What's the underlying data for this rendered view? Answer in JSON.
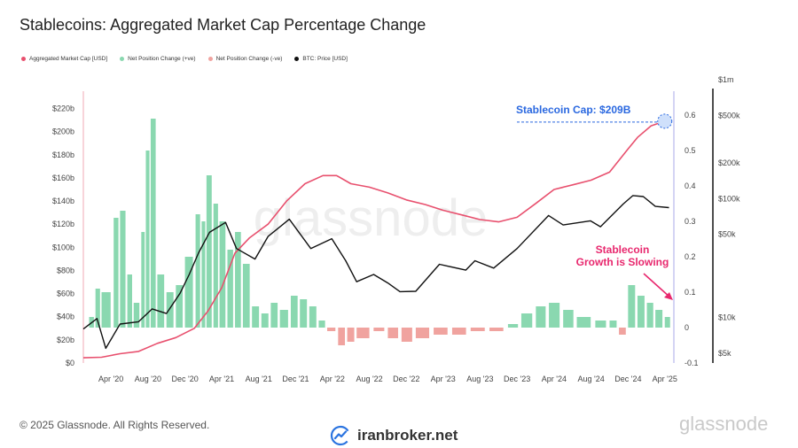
{
  "header": {
    "title": "Stablecoins: Aggregated Market Cap Percentage Change"
  },
  "legend": [
    {
      "label": "Aggregated Market Cap [USD]",
      "color": "#e8506e"
    },
    {
      "label": "Net Position Change (+ve)",
      "color": "#8ad8b0"
    },
    {
      "label": "Net Position Change (-ve)",
      "color": "#f0a39f"
    },
    {
      "label": "BTC: Price [USD]",
      "color": "#111111"
    }
  ],
  "footer": {
    "copyright": "© 2025 Glassnode. All Rights Reserved.",
    "brand": "iranbroker.net",
    "logo": "glassnode"
  },
  "chart_data": {
    "type": "line",
    "title": "Stablecoins: Aggregated Market Cap Percentage Change",
    "x_range": [
      "2020-01-01",
      "2025-05-01"
    ],
    "x_ticks": [
      "Apr '20",
      "Aug '20",
      "Dec '20",
      "Apr '21",
      "Aug '21",
      "Dec '21",
      "Apr '22",
      "Aug '22",
      "Dec '22",
      "Apr '23",
      "Aug '23",
      "Dec '23",
      "Apr '24",
      "Aug '24",
      "Dec '24",
      "Apr '25"
    ],
    "x_tick_dates": [
      "2020-04-01",
      "2020-08-01",
      "2020-12-01",
      "2021-04-01",
      "2021-08-01",
      "2021-12-01",
      "2022-04-01",
      "2022-08-01",
      "2022-12-01",
      "2023-04-01",
      "2023-08-01",
      "2023-12-01",
      "2024-04-01",
      "2024-08-01",
      "2024-12-01",
      "2025-04-01"
    ],
    "left_axis": {
      "ticks": [
        "$0",
        "$20b",
        "$40b",
        "$60b",
        "$80b",
        "$100b",
        "$120b",
        "$140b",
        "$160b",
        "$180b",
        "$200b",
        "$220b"
      ],
      "tick_values": [
        0,
        20,
        40,
        60,
        80,
        100,
        120,
        140,
        160,
        180,
        200,
        220
      ],
      "ylim": [
        0,
        225
      ],
      "unit": "billion USD"
    },
    "mid_axis": {
      "ticks": [
        "-0.1",
        "0",
        "0.1",
        "0.2",
        "0.3",
        "0.4",
        "0.5",
        "0.6"
      ],
      "tick_values": [
        -0.1,
        0,
        0.1,
        0.2,
        0.3,
        0.4,
        0.5,
        0.6
      ],
      "ylim": [
        -0.1,
        0.7
      ]
    },
    "right_axis": {
      "scale": "log",
      "ticks": [
        "$5k",
        "$10k",
        "$50k",
        "$100k",
        "$200k",
        "$500k",
        "$1m"
      ],
      "tick_values": [
        5000,
        10000,
        50000,
        100000,
        200000,
        500000,
        1000000
      ],
      "ylim": [
        5000,
        1000000
      ]
    },
    "series": [
      {
        "name": "Aggregated Market Cap [USD]",
        "axis": "left",
        "color": "#e8506e",
        "points": [
          [
            "2020-01-01",
            4.5
          ],
          [
            "2020-03-01",
            5
          ],
          [
            "2020-05-01",
            8
          ],
          [
            "2020-07-01",
            10
          ],
          [
            "2020-09-01",
            17
          ],
          [
            "2020-11-01",
            22
          ],
          [
            "2021-01-01",
            30
          ],
          [
            "2021-02-15",
            45
          ],
          [
            "2021-04-01",
            65
          ],
          [
            "2021-05-15",
            95
          ],
          [
            "2021-07-01",
            108
          ],
          [
            "2021-09-01",
            120
          ],
          [
            "2021-11-01",
            140
          ],
          [
            "2022-01-01",
            155
          ],
          [
            "2022-03-01",
            162
          ],
          [
            "2022-04-15",
            162
          ],
          [
            "2022-06-01",
            155
          ],
          [
            "2022-08-01",
            152
          ],
          [
            "2022-10-01",
            147
          ],
          [
            "2022-12-01",
            141
          ],
          [
            "2023-02-01",
            137
          ],
          [
            "2023-04-01",
            132
          ],
          [
            "2023-06-01",
            128
          ],
          [
            "2023-08-01",
            124
          ],
          [
            "2023-10-01",
            122
          ],
          [
            "2023-12-01",
            126
          ],
          [
            "2024-02-01",
            138
          ],
          [
            "2024-04-01",
            150
          ],
          [
            "2024-06-01",
            154
          ],
          [
            "2024-08-01",
            158
          ],
          [
            "2024-10-01",
            165
          ],
          [
            "2024-12-01",
            185
          ],
          [
            "2025-01-01",
            195
          ],
          [
            "2025-02-15",
            205
          ],
          [
            "2025-04-01",
            209
          ]
        ]
      },
      {
        "name": "BTC: Price [USD]",
        "axis": "right",
        "color": "#111111",
        "points": [
          [
            "2020-01-01",
            8000
          ],
          [
            "2020-02-15",
            9800
          ],
          [
            "2020-03-15",
            5500
          ],
          [
            "2020-05-01",
            8800
          ],
          [
            "2020-07-01",
            9200
          ],
          [
            "2020-08-15",
            11800
          ],
          [
            "2020-10-01",
            10800
          ],
          [
            "2020-11-15",
            16000
          ],
          [
            "2020-12-15",
            23000
          ],
          [
            "2021-01-15",
            35000
          ],
          [
            "2021-02-20",
            52000
          ],
          [
            "2021-04-14",
            63000
          ],
          [
            "2021-05-20",
            38000
          ],
          [
            "2021-07-20",
            31000
          ],
          [
            "2021-09-01",
            48000
          ],
          [
            "2021-11-10",
            67000
          ],
          [
            "2022-01-20",
            38000
          ],
          [
            "2022-03-30",
            46000
          ],
          [
            "2022-05-15",
            30000
          ],
          [
            "2022-06-20",
            20000
          ],
          [
            "2022-08-15",
            23000
          ],
          [
            "2022-10-01",
            19500
          ],
          [
            "2022-11-10",
            16500
          ],
          [
            "2023-01-01",
            16600
          ],
          [
            "2023-03-20",
            28000
          ],
          [
            "2023-06-15",
            25000
          ],
          [
            "2023-07-15",
            30000
          ],
          [
            "2023-09-15",
            26000
          ],
          [
            "2023-12-01",
            38000
          ],
          [
            "2024-03-14",
            72000
          ],
          [
            "2024-05-01",
            60000
          ],
          [
            "2024-07-30",
            65000
          ],
          [
            "2024-09-01",
            58000
          ],
          [
            "2024-11-15",
            90000
          ],
          [
            "2024-12-17",
            106000
          ],
          [
            "2025-01-20",
            104000
          ],
          [
            "2025-03-01",
            86000
          ],
          [
            "2025-04-15",
            84000
          ]
        ]
      }
    ],
    "bars": {
      "name": "Net Position Change",
      "axis": "mid",
      "positive_color": "#8ad8b0",
      "negative_color": "#f0a39f",
      "points": [
        [
          "2020-01-20",
          0.03
        ],
        [
          "2020-02-10",
          0.11
        ],
        [
          "2020-03-01",
          0.1
        ],
        [
          "2020-04-10",
          0.31
        ],
        [
          "2020-05-01",
          0.33
        ],
        [
          "2020-05-25",
          0.15
        ],
        [
          "2020-06-15",
          0.07
        ],
        [
          "2020-07-10",
          0.27
        ],
        [
          "2020-07-25",
          0.5
        ],
        [
          "2020-08-10",
          0.59
        ],
        [
          "2020-09-01",
          0.15
        ],
        [
          "2020-10-01",
          0.1
        ],
        [
          "2020-11-01",
          0.12
        ],
        [
          "2020-12-01",
          0.2
        ],
        [
          "2021-01-05",
          0.32
        ],
        [
          "2021-01-25",
          0.3
        ],
        [
          "2021-02-10",
          0.43
        ],
        [
          "2021-03-05",
          0.35
        ],
        [
          "2021-03-25",
          0.3
        ],
        [
          "2021-04-20",
          0.22
        ],
        [
          "2021-05-15",
          0.27
        ],
        [
          "2021-06-10",
          0.18
        ],
        [
          "2021-07-10",
          0.06
        ],
        [
          "2021-08-10",
          0.04
        ],
        [
          "2021-09-10",
          0.07
        ],
        [
          "2021-10-10",
          0.05
        ],
        [
          "2021-11-15",
          0.09
        ],
        [
          "2021-12-15",
          0.08
        ],
        [
          "2022-01-15",
          0.06
        ],
        [
          "2022-02-15",
          0.02
        ],
        [
          "2022-03-15",
          -0.01
        ],
        [
          "2022-04-20",
          -0.05
        ],
        [
          "2022-05-20",
          -0.04
        ],
        [
          "2022-06-20",
          -0.03
        ],
        [
          "2022-08-15",
          -0.01
        ],
        [
          "2022-10-01",
          -0.03
        ],
        [
          "2022-11-15",
          -0.04
        ],
        [
          "2023-01-01",
          -0.03
        ],
        [
          "2023-03-01",
          -0.02
        ],
        [
          "2023-05-01",
          -0.02
        ],
        [
          "2023-07-01",
          -0.01
        ],
        [
          "2023-09-01",
          -0.01
        ],
        [
          "2023-11-01",
          0.01
        ],
        [
          "2023-12-15",
          0.04
        ],
        [
          "2024-02-01",
          0.06
        ],
        [
          "2024-03-15",
          0.07
        ],
        [
          "2024-05-01",
          0.05
        ],
        [
          "2024-06-15",
          0.03
        ],
        [
          "2024-08-15",
          0.02
        ],
        [
          "2024-10-01",
          0.02
        ],
        [
          "2024-11-01",
          -0.02
        ],
        [
          "2024-12-01",
          0.12
        ],
        [
          "2025-01-01",
          0.09
        ],
        [
          "2025-02-01",
          0.07
        ],
        [
          "2025-03-01",
          0.05
        ],
        [
          "2025-04-01",
          0.03
        ]
      ]
    },
    "annotations": [
      {
        "text": "Stablecoin Cap: $209B",
        "color": "#2a68e0"
      },
      {
        "text": "Stablecoin Growth is Slowing",
        "color": "#e8286e"
      }
    ],
    "watermark": "glassnode"
  }
}
